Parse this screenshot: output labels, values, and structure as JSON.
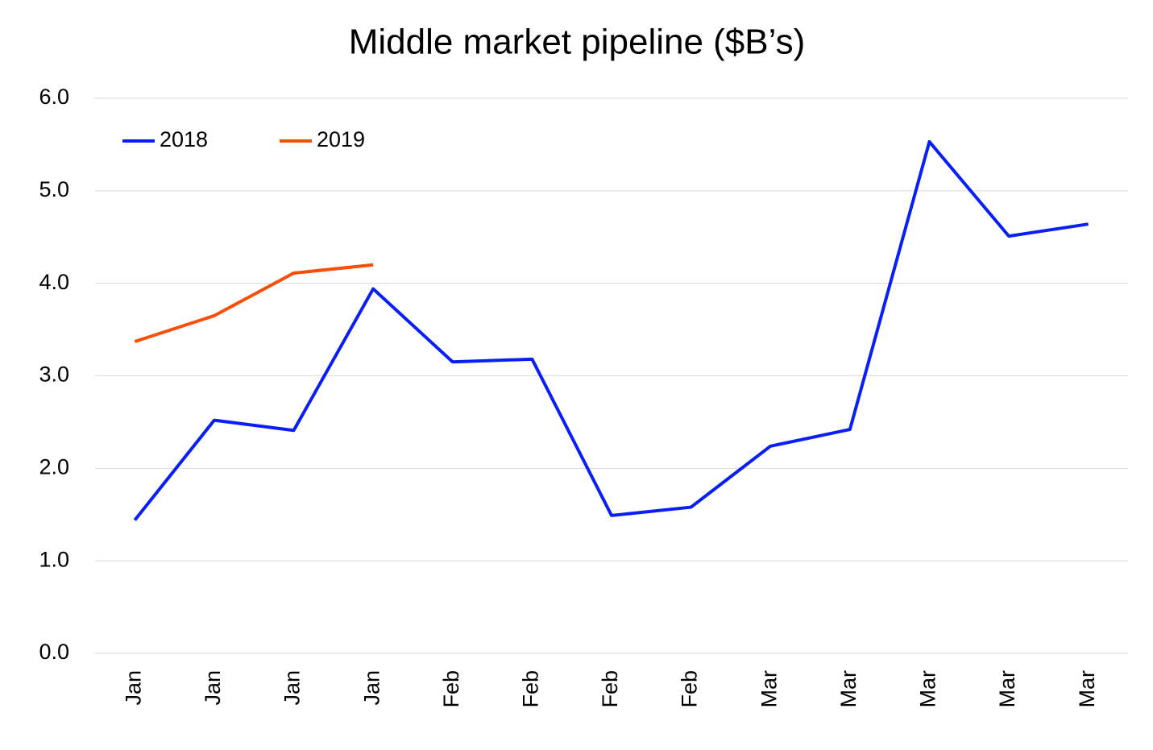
{
  "chart_data": {
    "type": "line",
    "title": "Middle market pipeline ($B’s)",
    "categories": [
      "Jan",
      "Jan",
      "Jan",
      "Jan",
      "Feb",
      "Feb",
      "Feb",
      "Feb",
      "Mar",
      "Mar",
      "Mar",
      "Mar",
      "Mar"
    ],
    "series": [
      {
        "name": "2018",
        "color": "#0a1ff5",
        "values": [
          1.44,
          2.52,
          2.41,
          3.94,
          3.15,
          3.18,
          1.49,
          1.58,
          2.24,
          2.42,
          5.53,
          4.51,
          4.64
        ]
      },
      {
        "name": "2019",
        "color": "#fa4e0a",
        "values": [
          3.37,
          3.65,
          4.11,
          4.2,
          null,
          null,
          null,
          null,
          null,
          null,
          null,
          null,
          null
        ]
      }
    ],
    "ylim": [
      0,
      6
    ],
    "yticks": [
      {
        "value": 0,
        "label": "0.0"
      },
      {
        "value": 1,
        "label": "1.0"
      },
      {
        "value": 2,
        "label": "2.0"
      },
      {
        "value": 3,
        "label": "3.0"
      },
      {
        "value": 4,
        "label": "4.0"
      },
      {
        "value": 5,
        "label": "5.0"
      },
      {
        "value": 6,
        "label": "6.0"
      }
    ],
    "grid": true,
    "legend": "top-left"
  }
}
